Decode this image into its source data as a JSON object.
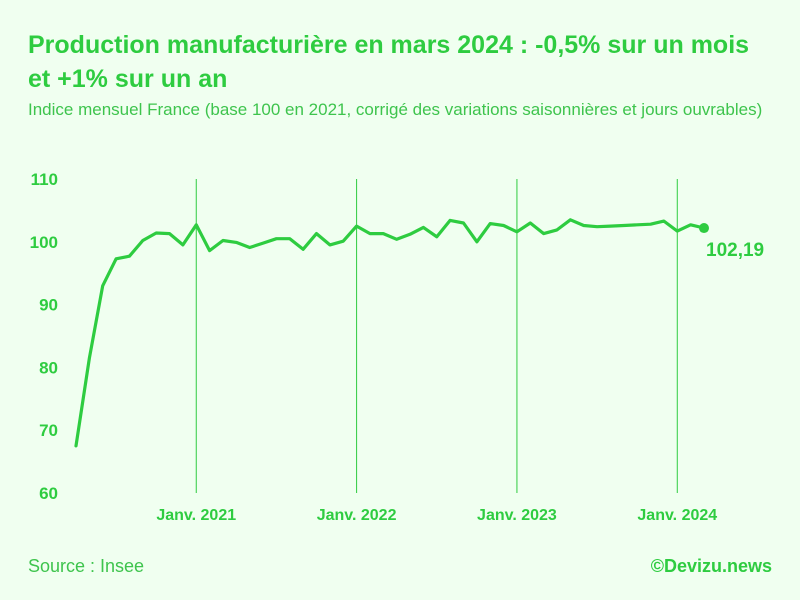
{
  "title": "Production manufacturière en mars 2024 : -0,5% sur un mois et +1% sur un an",
  "subtitle": "Indice mensuel France (base 100 en 2021, corrigé des variations saisonnières et jours ouvrables)",
  "source": "Source : Insee",
  "brand": "©Devizu.news",
  "colors": {
    "line": "#2ecc40",
    "background": "#f0fff0"
  },
  "chart_data": {
    "type": "line",
    "title": "Production manufacturière en mars 2024 : -0,5% sur un mois et +1% sur un an",
    "xlabel": "",
    "ylabel": "",
    "ylim": [
      60,
      110
    ],
    "yticks": [
      "60",
      "70",
      "80",
      "90",
      "100",
      "110"
    ],
    "xticks": [
      {
        "label": "Janv. 2021",
        "x": "2021-01"
      },
      {
        "label": "Janv. 2022",
        "x": "2022-01"
      },
      {
        "label": "Janv. 2023",
        "x": "2023-01"
      },
      {
        "label": "Janv. 2024",
        "x": "2024-01"
      }
    ],
    "vertical_gridlines": [
      "2021-01",
      "2022-01",
      "2023-01",
      "2024-01"
    ],
    "end_label": "102,19",
    "series": [
      {
        "x": [
          "2020-04",
          "2020-05",
          "2020-06",
          "2020-07",
          "2020-08",
          "2020-09",
          "2020-10",
          "2020-11",
          "2020-12",
          "2021-01",
          "2021-02",
          "2021-03",
          "2021-04",
          "2021-05",
          "2021-06",
          "2021-07",
          "2021-08",
          "2021-09",
          "2021-10",
          "2021-11",
          "2021-12",
          "2022-01",
          "2022-02",
          "2022-03",
          "2022-04",
          "2022-05",
          "2022-06",
          "2022-07",
          "2022-08",
          "2022-09",
          "2022-10",
          "2022-11",
          "2022-12",
          "2023-01",
          "2023-02",
          "2023-03",
          "2023-04",
          "2023-05",
          "2023-06",
          "2023-07",
          "2023-08",
          "2023-09",
          "2023-10",
          "2023-11",
          "2023-12",
          "2024-01",
          "2024-02",
          "2024-03"
        ],
        "values": [
          67.5,
          81.5,
          93,
          97.3,
          97.7,
          100.2,
          101.4,
          101.3,
          99.5,
          102.7,
          98.6,
          100.2,
          99.9,
          99.1,
          99.8,
          100.5,
          100.5,
          98.8,
          101.3,
          99.5,
          100.1,
          102.5,
          101.3,
          101.3,
          100.4,
          101.2,
          102.3,
          100.8,
          103.4,
          103.0,
          100.0,
          102.9,
          102.6,
          101.6,
          103.0,
          101.3,
          101.9,
          103.5,
          102.6,
          102.4,
          102.5,
          102.6,
          102.7,
          102.8,
          103.3,
          101.7,
          102.7,
          102.19
        ]
      }
    ]
  }
}
